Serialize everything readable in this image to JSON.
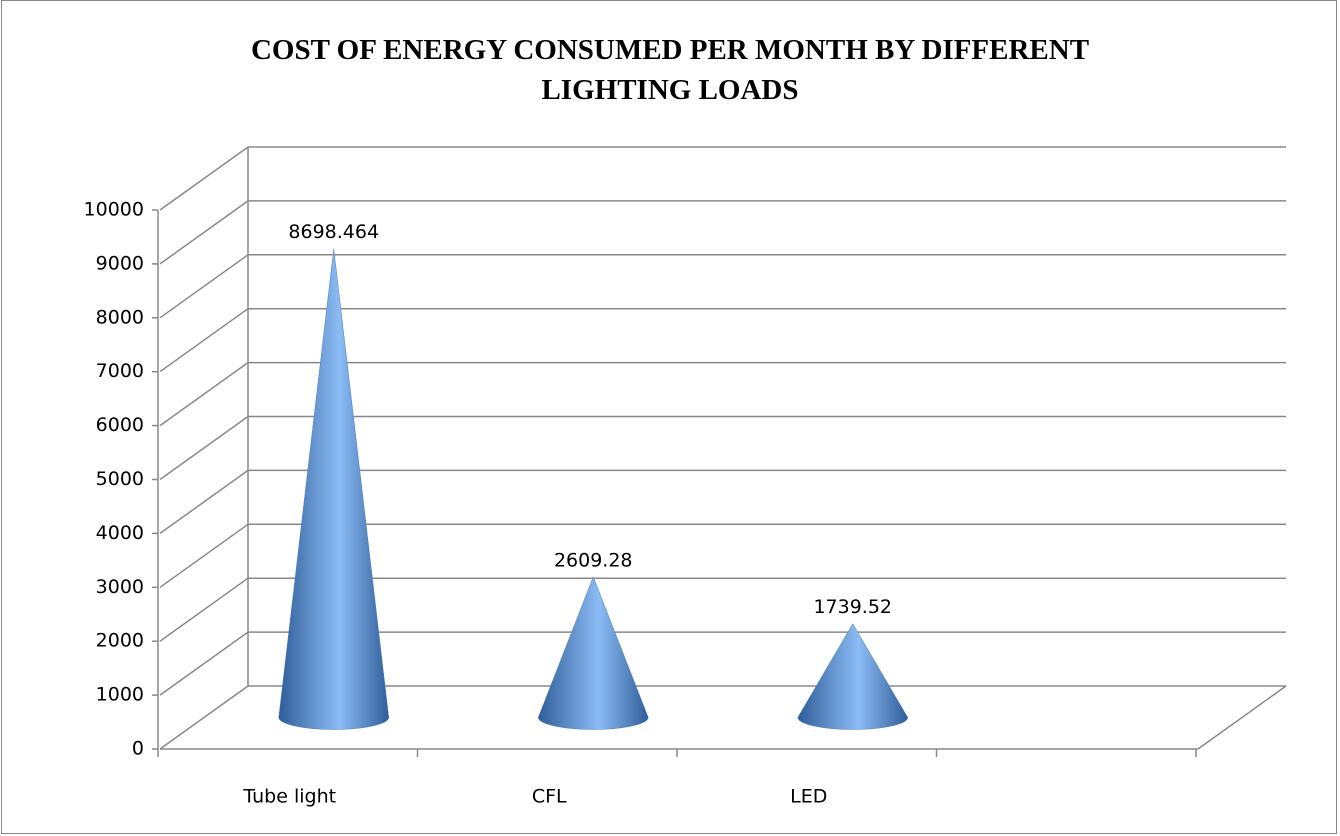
{
  "chart_data": {
    "type": "cone",
    "title": "COST OF ENERGY CONSUMED PER MONTH BY DIFFERENT LIGHTING LOADS",
    "categories": [
      "Tube light",
      "CFL",
      "LED",
      null
    ],
    "values": [
      8698.464,
      2609.28,
      1739.52,
      null
    ],
    "color": "#4f81bd",
    "ylim": [
      0,
      10000
    ],
    "yticks": [
      0,
      1000,
      2000,
      3000,
      4000,
      5000,
      6000,
      7000,
      8000,
      9000,
      10000
    ],
    "grid": true
  }
}
